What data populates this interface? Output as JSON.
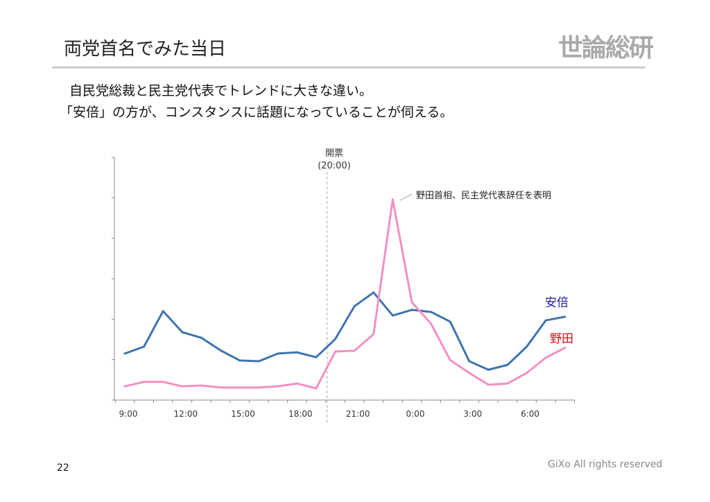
{
  "slide": {
    "title": "両党首名でみた当日",
    "logo": "世論総研",
    "body_lines": [
      "自民党総裁と民主党代表でトレンドに大きな違い。",
      "「安倍」の方が、コンスタンスに話題になっていることが伺える。"
    ],
    "page_number": "22",
    "footer": "GiXo All rights reserved"
  },
  "chart_data": {
    "type": "line",
    "categories": [
      "9:00",
      "10:00",
      "11:00",
      "12:00",
      "13:00",
      "14:00",
      "15:00",
      "16:00",
      "17:00",
      "18:00",
      "19:00",
      "20:00",
      "21:00",
      "22:00",
      "23:00",
      "0:00",
      "1:00",
      "2:00",
      "3:00",
      "4:00",
      "5:00",
      "6:00",
      "7:00",
      "8:00"
    ],
    "x_tick_labels": [
      "9:00",
      "12:00",
      "15:00",
      "18:00",
      "21:00",
      "0:00",
      "3:00",
      "6:00"
    ],
    "ylim": [
      0,
      6
    ],
    "y_tick_labels_shown": false,
    "grid": false,
    "series": [
      {
        "name": "安倍",
        "color": "#3f74ad",
        "label_color": "#1a1aa0",
        "values": [
          1.15,
          1.32,
          2.2,
          1.68,
          1.54,
          1.23,
          0.98,
          0.96,
          1.15,
          1.18,
          1.06,
          1.51,
          2.32,
          2.66,
          2.09,
          2.23,
          2.18,
          1.94,
          0.96,
          0.75,
          0.87,
          1.32,
          1.97,
          2.06
        ]
      },
      {
        "name": "野田",
        "color": "#f48fc4",
        "label_color": "#d01010",
        "values": [
          0.34,
          0.45,
          0.45,
          0.34,
          0.36,
          0.31,
          0.31,
          0.31,
          0.34,
          0.41,
          0.29,
          1.2,
          1.22,
          1.63,
          4.96,
          2.42,
          1.89,
          0.99,
          0.67,
          0.38,
          0.41,
          0.67,
          1.05,
          1.29
        ]
      }
    ],
    "annotations": [
      {
        "text_lines": [
          "開票",
          "(20:00)"
        ],
        "x": "19:50",
        "type": "vertical-dashed-line"
      },
      {
        "text": "野田首相、民主党代表辞任を表明",
        "target_series": "野田",
        "target_x": "23:00"
      }
    ]
  }
}
